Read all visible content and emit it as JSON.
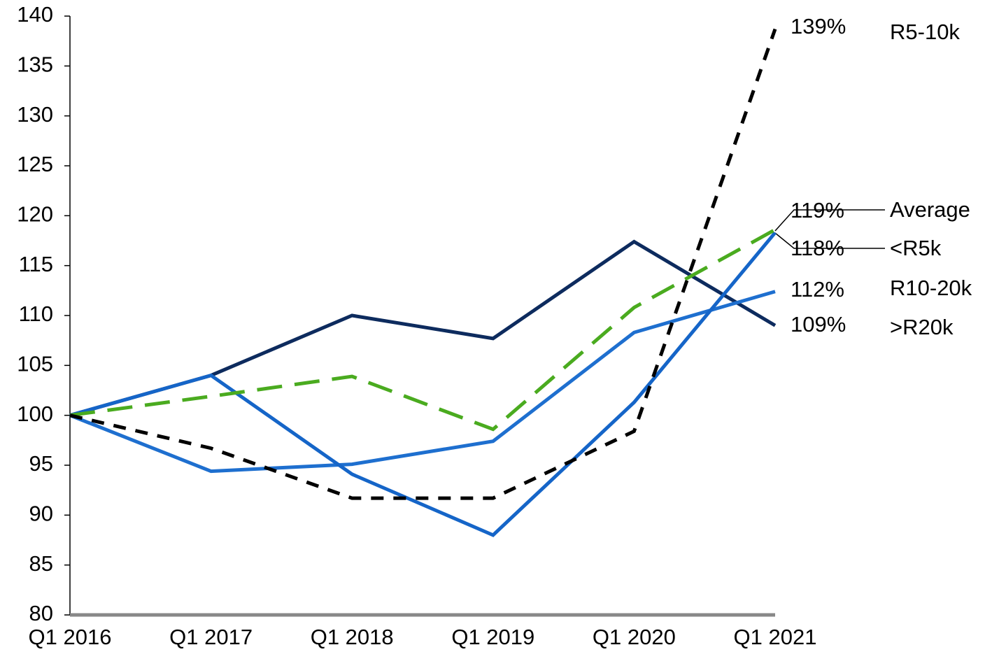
{
  "chart_data": {
    "type": "line",
    "categories": [
      "Q1 2016",
      "Q1 2017",
      "Q1 2018",
      "Q1 2019",
      "Q1 2020",
      "Q1 2021"
    ],
    "ylim": [
      80,
      140
    ],
    "yticks": [
      80,
      85,
      90,
      95,
      100,
      105,
      110,
      115,
      120,
      125,
      130,
      135,
      140
    ],
    "series": [
      {
        "name": ">R20k",
        "color": "#0d2b5e",
        "dashed": false,
        "values": [
          100,
          104,
          110,
          107.7,
          117.4,
          109
        ],
        "value_labels": [
          null,
          null,
          null,
          null,
          null,
          "109%"
        ]
      },
      {
        "name": "R10-20k",
        "color": "#1e6fcf",
        "dashed": false,
        "values": [
          100,
          94.4,
          95.1,
          97.4,
          108.3,
          112.4
        ],
        "value_labels": [
          null,
          null,
          null,
          null,
          null,
          "112%"
        ]
      },
      {
        "name": "<R5k",
        "color": "#1565c8",
        "dashed": false,
        "values": [
          100,
          104,
          94.1,
          88,
          101.3,
          118.3
        ],
        "value_labels": [
          null,
          null,
          null,
          null,
          null,
          "118%"
        ]
      },
      {
        "name": "Average",
        "color": "#4aab1f",
        "dashed": true,
        "values": [
          100,
          101.9,
          103.9,
          98.6,
          110.8,
          118.6
        ],
        "value_labels": [
          null,
          null,
          null,
          null,
          null,
          "119%"
        ]
      },
      {
        "name": "R5-10k",
        "color": "#000000",
        "dashed": true,
        "values": [
          100,
          96.7,
          91.7,
          91.7,
          98.4,
          138.7
        ],
        "value_labels": [
          null,
          null,
          null,
          null,
          null,
          "139%"
        ]
      }
    ]
  }
}
